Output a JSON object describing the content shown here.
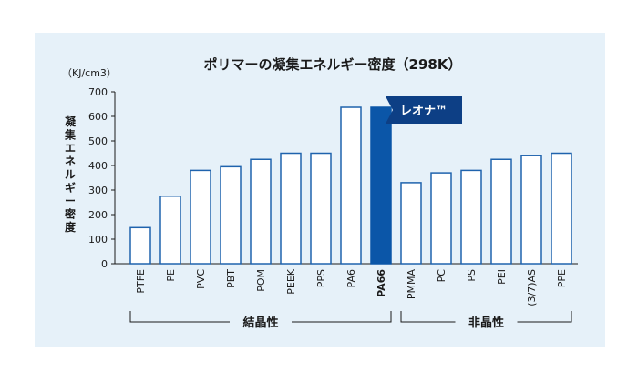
{
  "colors": {
    "panel_bg": "#e6f1f9",
    "bar_fill": "#ffffff",
    "bar_stroke": "#1f63ad",
    "highlight_fill": "#0b56a8",
    "callout_fill": "#0d3f85",
    "axis": "#1a1a1a"
  },
  "chart_data": {
    "type": "bar",
    "title": "ポリマーの凝集エネルギー密度（298K）",
    "unit_label": "（KJ/cm3）",
    "ylabel": "凝集エネルギー密度",
    "ylim": [
      0,
      700
    ],
    "yticks": [
      0,
      100,
      200,
      300,
      400,
      500,
      600,
      700
    ],
    "categories": [
      "PTFE",
      "PE",
      "PVC",
      "PBT",
      "POM",
      "PEEK",
      "PPS",
      "PA6",
      "PA66",
      "PMMA",
      "PC",
      "PS",
      "PEI",
      "(3/7)AS",
      "PPE"
    ],
    "values": [
      147,
      275,
      380,
      395,
      425,
      450,
      450,
      637,
      637,
      330,
      370,
      380,
      425,
      440,
      450
    ],
    "highlight": "PA66",
    "callout": "レオナ™",
    "groups": [
      {
        "label": "結晶性",
        "categories": [
          "PTFE",
          "PE",
          "PVC",
          "PBT",
          "POM",
          "PEEK",
          "PPS",
          "PA6",
          "PA66"
        ]
      },
      {
        "label": "非晶性",
        "categories": [
          "PMMA",
          "PC",
          "PS",
          "PEI",
          "(3/7)AS",
          "PPE"
        ]
      }
    ],
    "grid": false,
    "legend": "none"
  }
}
